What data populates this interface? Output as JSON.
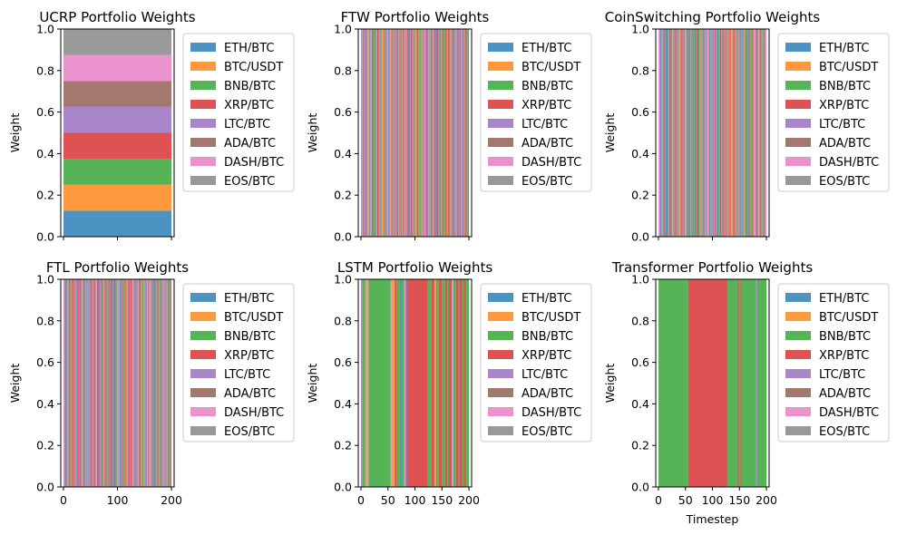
{
  "assets": [
    "ETH/BTC",
    "BTC/USDT",
    "BNB/BTC",
    "XRP/BTC",
    "LTC/BTC",
    "ADA/BTC",
    "DASH/BTC",
    "EOS/BTC"
  ],
  "colors": [
    "#1f77b4",
    "#ff7f0e",
    "#2ca02c",
    "#d62728",
    "#9467bd",
    "#8c564b",
    "#e377c2",
    "#7f7f7f"
  ],
  "chart_data": [
    {
      "type": "area",
      "title": "UCRP Portfolio Weights",
      "ylabel": "Weight",
      "xlabel": "",
      "ylim": [
        0,
        1
      ],
      "xlim": [
        -5,
        205
      ],
      "x_ticks": [],
      "y_ticks": [
        0.0,
        0.2,
        0.4,
        0.6,
        0.8,
        1.0
      ],
      "legend": "right",
      "allocation": "constant",
      "weights": [
        0.125,
        0.125,
        0.125,
        0.125,
        0.125,
        0.125,
        0.125,
        0.125
      ]
    },
    {
      "type": "area",
      "title": "FTW Portfolio Weights",
      "ylabel": "Weight",
      "xlabel": "",
      "ylim": [
        0,
        1
      ],
      "xlim": [
        -5,
        205
      ],
      "x_ticks": [],
      "y_ticks": [
        0.0,
        0.2,
        0.4,
        0.6,
        0.8,
        1.0
      ],
      "legend": "right",
      "allocation": "one-hot, switching every timestep among all 8 assets",
      "segments": []
    },
    {
      "type": "area",
      "title": "CoinSwitching Portfolio Weights",
      "ylabel": "Weight",
      "xlabel": "",
      "ylim": [
        0,
        1
      ],
      "xlim": [
        -5,
        205
      ],
      "x_ticks": [],
      "y_ticks": [
        0.0,
        0.2,
        0.4,
        0.6,
        0.8,
        1.0
      ],
      "legend": "right",
      "allocation": "one-hot, switching every timestep among all 8 assets",
      "segments": []
    },
    {
      "type": "area",
      "title": "FTL Portfolio Weights",
      "ylabel": "Weight",
      "xlabel": "",
      "ylim": [
        0,
        1
      ],
      "xlim": [
        -5,
        205
      ],
      "x_ticks": [
        0,
        100,
        200
      ],
      "y_ticks": [
        0.0,
        0.2,
        0.4,
        0.6,
        0.8,
        1.0
      ],
      "legend": "right",
      "allocation": "one-hot, switching every timestep among all 8 assets",
      "segments": []
    },
    {
      "type": "area",
      "title": "LSTM Portfolio Weights",
      "ylabel": "Weight",
      "xlabel": "",
      "ylim": [
        0,
        1
      ],
      "xlim": [
        -5,
        205
      ],
      "x_ticks": [
        0,
        50,
        100,
        150,
        200
      ],
      "y_ticks": [
        0.0,
        0.2,
        0.4,
        0.6,
        0.8,
        1.0
      ],
      "legend": "right",
      "allocation": "one-hot",
      "segments": [
        {
          "start": 0,
          "end": 3,
          "asset": 4
        },
        {
          "start": 3,
          "end": 8,
          "asset": 2
        },
        {
          "start": 8,
          "end": 11,
          "asset": 1
        },
        {
          "start": 11,
          "end": 14,
          "asset": 6
        },
        {
          "start": 14,
          "end": 55,
          "asset": 2
        },
        {
          "start": 55,
          "end": 58,
          "asset": 6
        },
        {
          "start": 58,
          "end": 63,
          "asset": 1
        },
        {
          "start": 63,
          "end": 66,
          "asset": 3
        },
        {
          "start": 66,
          "end": 72,
          "asset": 2
        },
        {
          "start": 72,
          "end": 75,
          "asset": 0
        },
        {
          "start": 75,
          "end": 80,
          "asset": 2
        },
        {
          "start": 80,
          "end": 83,
          "asset": 6
        },
        {
          "start": 83,
          "end": 85,
          "asset": 0
        },
        {
          "start": 85,
          "end": 124,
          "asset": 3
        },
        {
          "start": 124,
          "end": 131,
          "asset": 2
        },
        {
          "start": 131,
          "end": 136,
          "asset": 3
        },
        {
          "start": 136,
          "end": 139,
          "asset": 1
        },
        {
          "start": 139,
          "end": 144,
          "asset": 2
        },
        {
          "start": 144,
          "end": 150,
          "asset": 3
        },
        {
          "start": 150,
          "end": 156,
          "asset": 2
        },
        {
          "start": 156,
          "end": 160,
          "asset": 3
        },
        {
          "start": 160,
          "end": 163,
          "asset": 2
        },
        {
          "start": 163,
          "end": 168,
          "asset": 3
        },
        {
          "start": 168,
          "end": 171,
          "asset": 6
        },
        {
          "start": 171,
          "end": 176,
          "asset": 2
        },
        {
          "start": 176,
          "end": 180,
          "asset": 3
        },
        {
          "start": 180,
          "end": 183,
          "asset": 5
        },
        {
          "start": 183,
          "end": 188,
          "asset": 3
        },
        {
          "start": 188,
          "end": 190,
          "asset": 2
        },
        {
          "start": 190,
          "end": 194,
          "asset": 3
        },
        {
          "start": 194,
          "end": 200,
          "asset": 2
        }
      ]
    },
    {
      "type": "area",
      "title": "Transformer Portfolio Weights",
      "ylabel": "Weight",
      "xlabel": "Timestep",
      "ylim": [
        0,
        1
      ],
      "xlim": [
        -5,
        205
      ],
      "x_ticks": [
        0,
        50,
        100,
        150,
        200
      ],
      "y_ticks": [
        0.0,
        0.2,
        0.4,
        0.6,
        0.8,
        1.0
      ],
      "legend": "right",
      "allocation": "one-hot",
      "segments": [
        {
          "start": 0,
          "end": 55,
          "asset": 2
        },
        {
          "start": 55,
          "end": 128,
          "asset": 3
        },
        {
          "start": 128,
          "end": 146,
          "asset": 2
        },
        {
          "start": 146,
          "end": 149,
          "asset": 3
        },
        {
          "start": 149,
          "end": 152,
          "asset": 2
        },
        {
          "start": 152,
          "end": 154,
          "asset": 3
        },
        {
          "start": 154,
          "end": 180,
          "asset": 2
        },
        {
          "start": 180,
          "end": 183,
          "asset": 4
        },
        {
          "start": 183,
          "end": 200,
          "asset": 2
        }
      ]
    }
  ]
}
